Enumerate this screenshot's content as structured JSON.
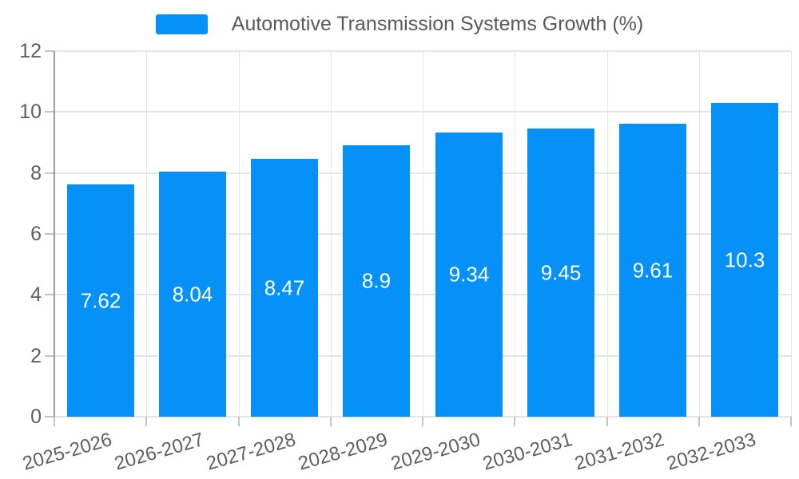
{
  "legend": {
    "label": "Automotive Transmission Systems Growth (%)"
  },
  "chart_data": {
    "type": "bar",
    "title": "",
    "xlabel": "",
    "ylabel": "",
    "categories": [
      "2025-2026",
      "2026-2027",
      "2027-2028",
      "2028-2029",
      "2029-2030",
      "2030-2031",
      "2031-2032",
      "2032-2033"
    ],
    "series": [
      {
        "name": "Automotive Transmission Systems Growth (%)",
        "values": [
          7.62,
          8.04,
          8.47,
          8.9,
          9.34,
          9.45,
          9.61,
          10.3
        ],
        "value_labels": [
          "7.62",
          "8.04",
          "8.47",
          "8.9",
          "9.34",
          "9.45",
          "9.61",
          "10.3"
        ]
      }
    ],
    "ylim": [
      0,
      12
    ],
    "yticks": [
      0,
      2,
      4,
      6,
      8,
      10,
      12
    ],
    "ytick_labels": [
      "0",
      "2",
      "4",
      "6",
      "8",
      "10",
      "12"
    ],
    "grid": true,
    "legend_position": "top",
    "x_label_rotation_deg": -16
  },
  "colors": {
    "bar": "#0591f8",
    "bar_label": "#ffffff",
    "legend_text": "#595959",
    "axis_text": "#5f5f5f",
    "grid": "#e5e5e5",
    "axis_line": "#9b9b9b",
    "tick": "#c4c4c4",
    "background": "#ffffff"
  }
}
